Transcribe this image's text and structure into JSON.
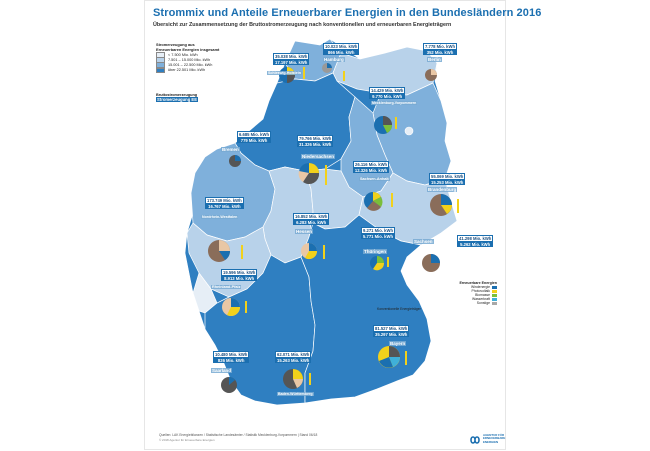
{
  "title": "Strommix und Anteile Erneuerbarer Energien in den Bundesländern 2016",
  "subtitle": "Übersicht zur Zusammensetzung der Bruttostromerzeugung nach konventionellen und erneuerbaren Energieträgern",
  "legend": {
    "heading_line1": "Stromerzeugung aus",
    "heading_line2": "Erneuerbaren Energien insgesamt",
    "classes": [
      {
        "label": "< 7.500 Mio. kWh",
        "color": "#e6eef6"
      },
      {
        "label": "7.501 – 15.000 Mio. kWh",
        "color": "#b8d2ea"
      },
      {
        "label": "15.001 – 22.500 Mio. kWh",
        "color": "#7fb0db"
      },
      {
        "label": "über 22.501 Mio. kWh",
        "color": "#2f7fc1"
      }
    ]
  },
  "brutto": {
    "heading": "Bruttostromerzeugung",
    "example_total": "",
    "example_ee": "Stromerzeugung EE"
  },
  "key": {
    "heading": "Erneuerbare Energien",
    "sub": "Konventionelle Energieträger",
    "items": [
      {
        "label": "Windenergie",
        "color": "#1b6fb0"
      },
      {
        "label": "Photovoltaik",
        "color": "#f2d11b"
      },
      {
        "label": "Biomasse",
        "color": "#7bbf3a"
      },
      {
        "label": "Wasserkraft",
        "color": "#3fb0d9"
      },
      {
        "label": "Sonstige",
        "color": "#a8a8a8"
      }
    ]
  },
  "notes": "",
  "source": "Quellen: LAK Energiebilanzen / Statistische Landesämter / Statistik Mecklenburg-Vorpommern | Stand 06/18",
  "source2": "© 2018 Agentur für Erneuerbare Energien",
  "logo_text": "AGENTUR FÜR ERNEUERBARE ENERGIEN",
  "colors": {
    "accent": "#1b6fb0"
  },
  "states": [
    {
      "name": "Schleswig-Holstein",
      "total": "35.038 Mio. kWh",
      "ee": "17.197 Mio. kWh"
    },
    {
      "name": "Hamburg",
      "total": "10.023 Mio. kWh",
      "ee": "866 Mio. kWh"
    },
    {
      "name": "Berlin",
      "total": "7.778 Mio. kWh",
      "ee": "352 Mio. kWh"
    },
    {
      "name": "Mecklenburg-Vorpommern",
      "total": "14.429 Mio. kWh",
      "ee": "9.770 Mio. kWh"
    },
    {
      "name": "Bremen",
      "total": "6.685 Mio. kWh",
      "ee": "779 Mio. kWh"
    },
    {
      "name": "Niedersachsen",
      "total": "79.766 Mio. kWh",
      "ee": "31.326 Mio. kWh"
    },
    {
      "name": "Sachsen-Anhalt",
      "total": "26.116 Mio. kWh",
      "ee": "12.326 Mio. kWh"
    },
    {
      "name": "Brandenburg",
      "total": "55.069 Mio. kWh",
      "ee": "15.253 Mio. kWh"
    },
    {
      "name": "Nordrhein-Westfalen",
      "total": "173.749 Mio. kWh",
      "ee": "16.767 Mio. kWh"
    },
    {
      "name": "Hessen",
      "total": "16.852 Mio. kWh",
      "ee": "6.283 Mio. kWh"
    },
    {
      "name": "Thüringen",
      "total": "9.271 Mio. kWh",
      "ee": "5.771 Mio. kWh"
    },
    {
      "name": "Sachsen",
      "total": "41.298 Mio. kWh",
      "ee": "5.262 Mio. kWh"
    },
    {
      "name": "Rheinland-Pfalz",
      "total": "19.596 Mio. kWh",
      "ee": "8.913 Mio. kWh"
    },
    {
      "name": "Saarland",
      "total": "10.480 Mio. kWh",
      "ee": "826 Mio. kWh"
    },
    {
      "name": "Baden-Württemberg",
      "total": "62.071 Mio. kWh",
      "ee": "15.263 Mio. kWh"
    },
    {
      "name": "Bayern",
      "total": "81.527 Mio. kWh",
      "ee": "35.297 Mio. kWh"
    }
  ]
}
